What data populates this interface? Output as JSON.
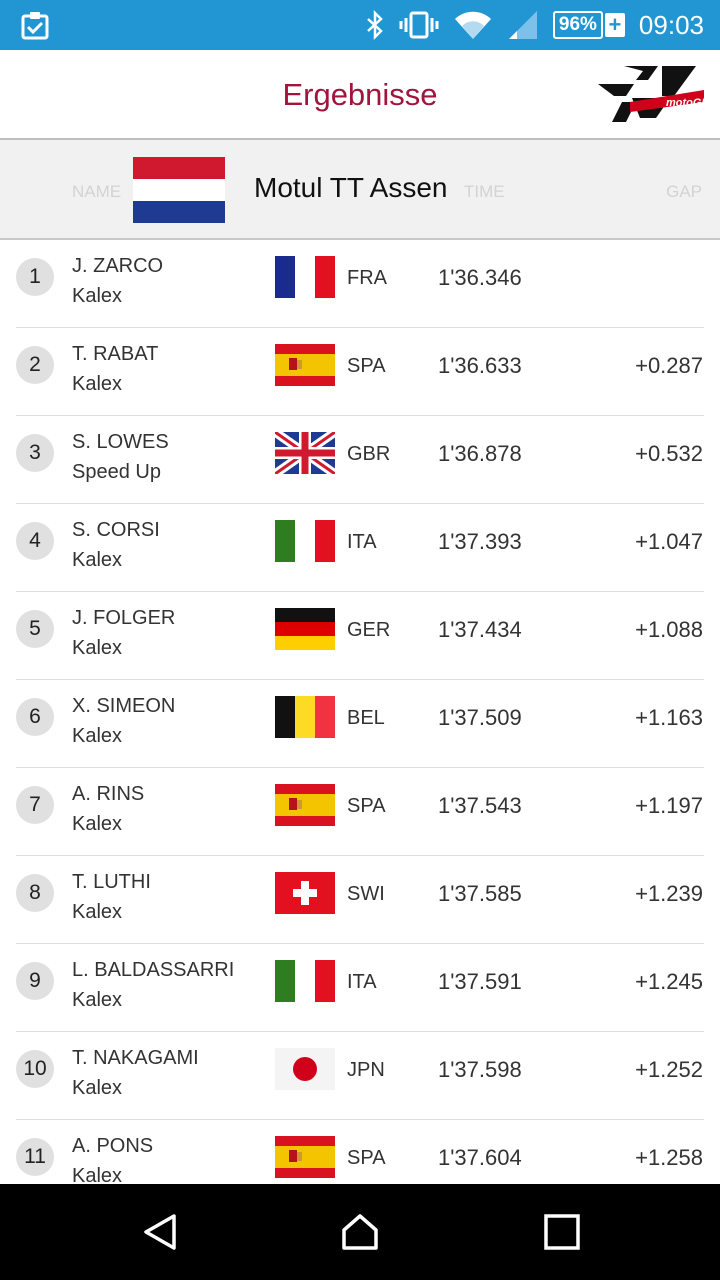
{
  "status_bar": {
    "time": "09:03",
    "battery": "96%",
    "battery_charging": "+",
    "icons": [
      "clipboard-check-icon",
      "bluetooth-icon",
      "vibrate-icon",
      "wifi-icon",
      "signal-icon"
    ]
  },
  "header": {
    "title": "Ergebnisse",
    "logo": "motogp"
  },
  "banner": {
    "event": "Motul TT Assen",
    "country_flag": "NED",
    "col_name": "NAME",
    "col_time": "TIME",
    "col_gap": "GAP"
  },
  "results": [
    {
      "pos": "1",
      "rider": "J. ZARCO",
      "team": "Kalex",
      "flag": "FRA",
      "nat": "FRA",
      "time": "1'36.346",
      "gap": ""
    },
    {
      "pos": "2",
      "rider": "T. RABAT",
      "team": "Kalex",
      "flag": "SPA",
      "nat": "SPA",
      "time": "1'36.633",
      "gap": "+0.287"
    },
    {
      "pos": "3",
      "rider": "S. LOWES",
      "team": "Speed Up",
      "flag": "GBR",
      "nat": "GBR",
      "time": "1'36.878",
      "gap": "+0.532"
    },
    {
      "pos": "4",
      "rider": "S. CORSI",
      "team": "Kalex",
      "flag": "ITA",
      "nat": "ITA",
      "time": "1'37.393",
      "gap": "+1.047"
    },
    {
      "pos": "5",
      "rider": "J. FOLGER",
      "team": "Kalex",
      "flag": "GER",
      "nat": "GER",
      "time": "1'37.434",
      "gap": "+1.088"
    },
    {
      "pos": "6",
      "rider": "X. SIMEON",
      "team": "Kalex",
      "flag": "BEL",
      "nat": "BEL",
      "time": "1'37.509",
      "gap": "+1.163"
    },
    {
      "pos": "7",
      "rider": "A. RINS",
      "team": "Kalex",
      "flag": "SPA",
      "nat": "SPA",
      "time": "1'37.543",
      "gap": "+1.197"
    },
    {
      "pos": "8",
      "rider": "T. LUTHI",
      "team": "Kalex",
      "flag": "SWI",
      "nat": "SWI",
      "time": "1'37.585",
      "gap": "+1.239"
    },
    {
      "pos": "9",
      "rider": "L. BALDASSARRI",
      "team": "Kalex",
      "flag": "ITA",
      "nat": "ITA",
      "time": "1'37.591",
      "gap": "+1.245"
    },
    {
      "pos": "10",
      "rider": "T. NAKAGAMI",
      "team": "Kalex",
      "flag": "JPN",
      "nat": "JPN",
      "time": "1'37.598",
      "gap": "+1.252"
    },
    {
      "pos": "11",
      "rider": "A. PONS",
      "team": "Kalex",
      "flag": "SPA",
      "nat": "SPA",
      "time": "1'37.604",
      "gap": "+1.258"
    }
  ],
  "nav": [
    "back-icon",
    "home-icon",
    "recents-icon"
  ],
  "colors": {
    "accent": "#a0153e",
    "status_bar": "#2196d3"
  }
}
